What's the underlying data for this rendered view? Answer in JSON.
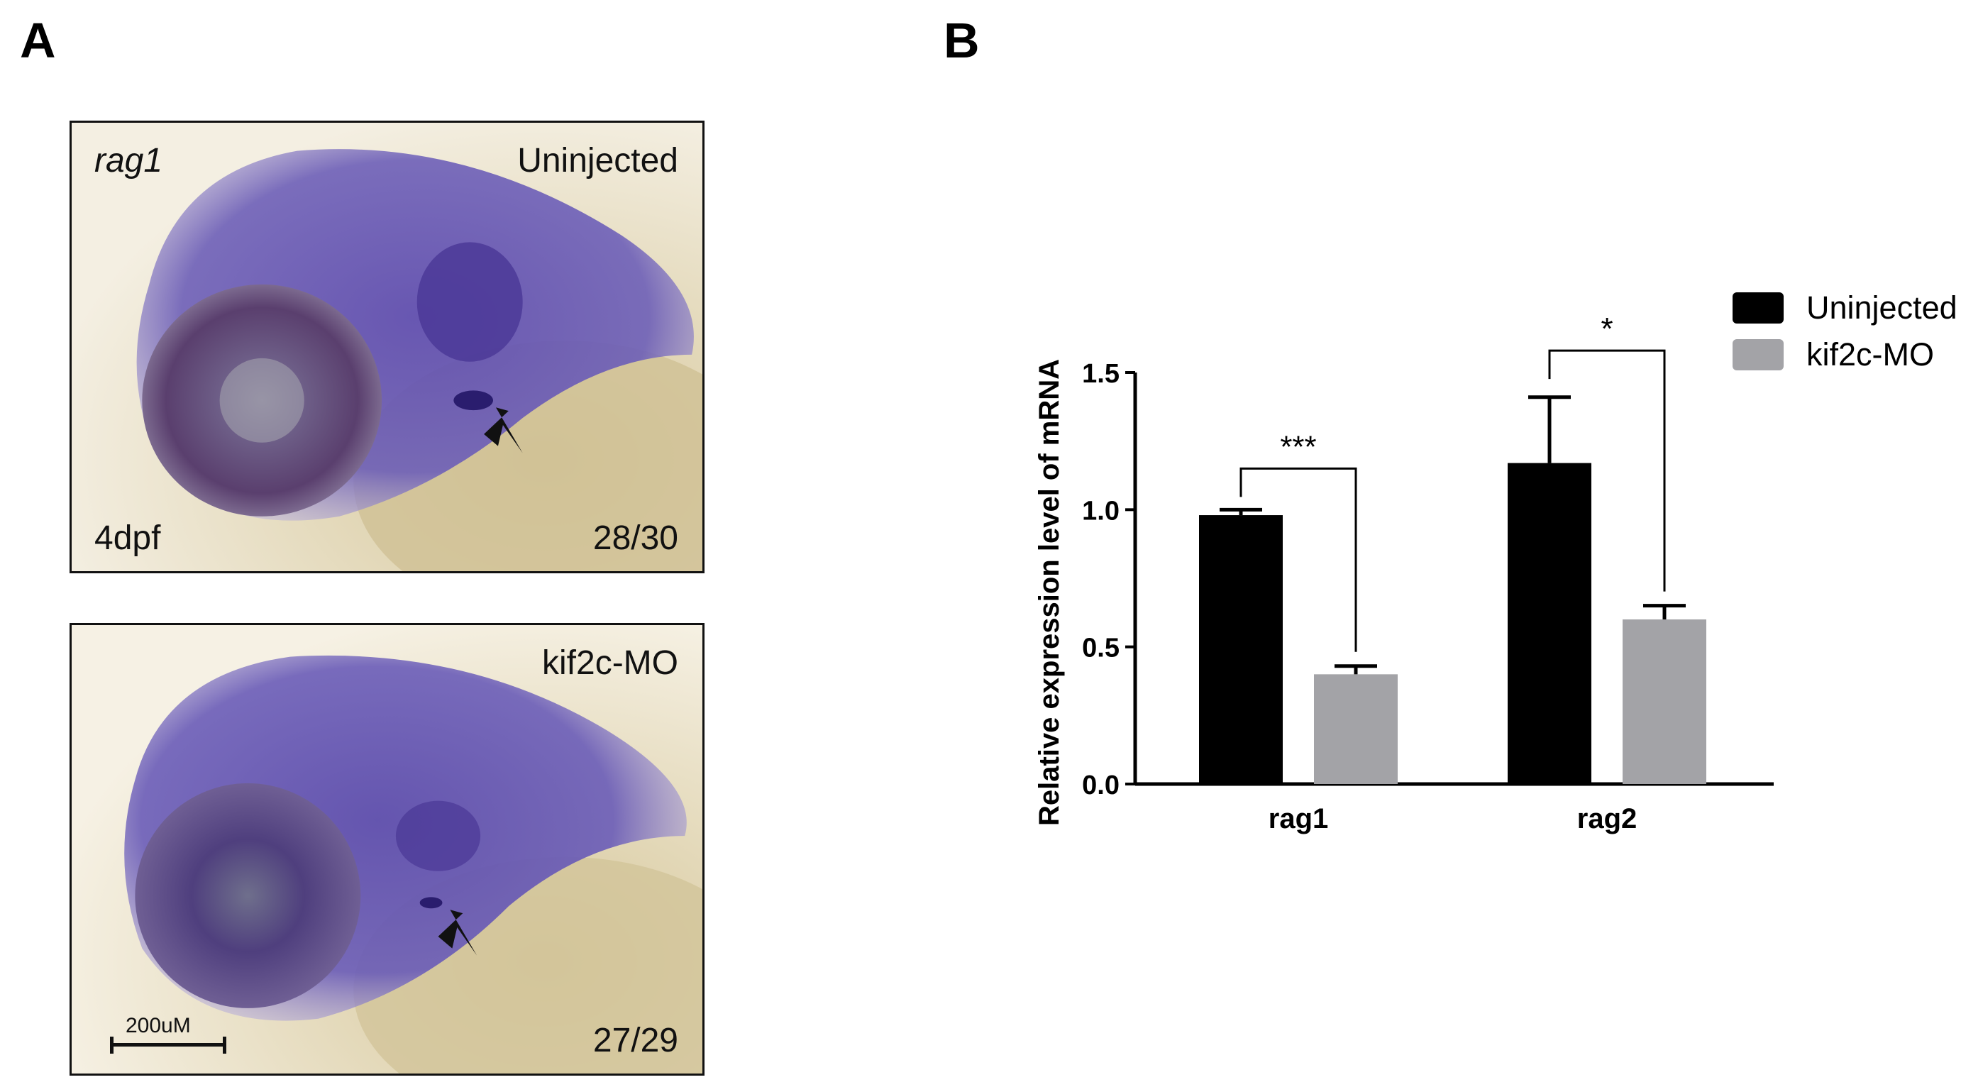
{
  "panels": {
    "a_letter": "A",
    "b_letter": "B"
  },
  "micrographs": [
    {
      "probe": "rag1",
      "condition": "Uninjected",
      "stage": "4dpf",
      "count": "28/30"
    },
    {
      "probe": "",
      "condition": "kif2c-MO",
      "stage": "",
      "count": "27/29",
      "scalebar": "200uM"
    }
  ],
  "colors": {
    "uninjected": "#000000",
    "kif2c_mo": "#a3a3a7",
    "stain": "#4b3d9c",
    "yolk": "#d8cba0"
  },
  "chart_data": {
    "type": "bar",
    "categories": [
      "rag1",
      "rag2"
    ],
    "series": [
      {
        "name": "Uninjected",
        "values": [
          0.98,
          1.17
        ],
        "errors": [
          0.02,
          0.24
        ]
      },
      {
        "name": "kif2c-MO",
        "values": [
          0.4,
          0.6
        ],
        "errors": [
          0.03,
          0.05
        ]
      }
    ],
    "ylabel": "Relative expression level of mRNA",
    "xlabel": "",
    "ylim": [
      0,
      1.5
    ],
    "yticks": [
      "0.0",
      "0.5",
      "1.0",
      "1.5"
    ],
    "significance": [
      {
        "category": "rag1",
        "label": "***",
        "bracket_y": 1.15
      },
      {
        "category": "rag2",
        "label": "*",
        "bracket_y": 1.58
      }
    ],
    "legend_position": "top-right"
  }
}
